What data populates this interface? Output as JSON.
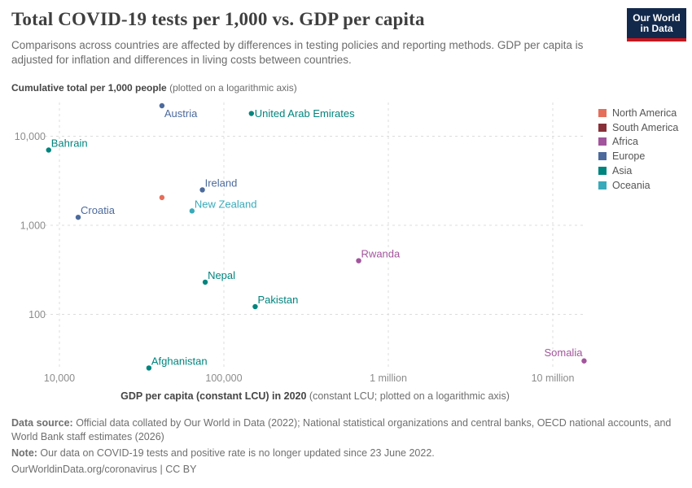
{
  "header": {
    "title": "Total COVID-19 tests per 1,000 vs. GDP per capita",
    "subtitle": "Comparisons across countries are affected by differences in testing policies and reporting methods. GDP per capita is adjusted for inflation and differences in living costs between countries.",
    "logo": {
      "line1": "Our World",
      "line2": "in Data",
      "bg_color": "#12294b",
      "stripe_color": "#c7161d"
    }
  },
  "chart_data": {
    "type": "scatter",
    "title": "Total COVID-19 tests per 1,000 vs. GDP per capita",
    "x_axis": {
      "title_bold": "GDP per capita (constant LCU) in 2020",
      "title_note": " (constant LCU; plotted on a logarithmic axis)",
      "scale": "log",
      "range": [
        8000,
        16000000
      ],
      "ticks": [
        {
          "value": 10000,
          "label": "10,000"
        },
        {
          "value": 100000,
          "label": "100,000"
        },
        {
          "value": 1000000,
          "label": "1 million"
        },
        {
          "value": 10000000,
          "label": "10 million"
        }
      ]
    },
    "y_axis": {
      "title_bold": "Cumulative total per 1,000 people",
      "title_note": " (plotted on a logarithmic axis)",
      "scale": "log",
      "range": [
        24,
        25000
      ],
      "ticks": [
        {
          "value": 100,
          "label": "100"
        },
        {
          "value": 1000,
          "label": "1,000"
        },
        {
          "value": 10000,
          "label": "10,000"
        }
      ]
    },
    "grid": "dashed",
    "legend_position": "right",
    "continent_colors": {
      "North America": "#E56E5A",
      "South America": "#883039",
      "Africa": "#A2559C",
      "Europe": "#4C6A9C",
      "Asia": "#00847E",
      "Oceania": "#38AABA"
    },
    "legend": [
      "North America",
      "South America",
      "Africa",
      "Europe",
      "Asia",
      "Oceania"
    ],
    "points": [
      {
        "name": "Austria",
        "continent": "Europe",
        "gdp_per_capita": 42000,
        "tests_per_1000": 22000,
        "label_anchor": "below-right"
      },
      {
        "name": "United Arab Emirates",
        "continent": "Asia",
        "gdp_per_capita": 147000,
        "tests_per_1000": 18000,
        "label_anchor": "right"
      },
      {
        "name": "Bahrain",
        "continent": "Asia",
        "gdp_per_capita": 8600,
        "tests_per_1000": 7000,
        "label_anchor": "above-right"
      },
      {
        "name": "Ireland",
        "continent": "Europe",
        "gdp_per_capita": 74000,
        "tests_per_1000": 2500,
        "label_anchor": "above-right"
      },
      {
        "name": "",
        "continent": "North America",
        "gdp_per_capita": 42000,
        "tests_per_1000": 2050,
        "label_anchor": "none"
      },
      {
        "name": "New Zealand",
        "continent": "Oceania",
        "gdp_per_capita": 64000,
        "tests_per_1000": 1450,
        "label_anchor": "above-right"
      },
      {
        "name": "Croatia",
        "continent": "Europe",
        "gdp_per_capita": 13000,
        "tests_per_1000": 1230,
        "label_anchor": "above-right"
      },
      {
        "name": "Rwanda",
        "continent": "Africa",
        "gdp_per_capita": 660000,
        "tests_per_1000": 400,
        "label_anchor": "above-right"
      },
      {
        "name": "Nepal",
        "continent": "Asia",
        "gdp_per_capita": 77000,
        "tests_per_1000": 230,
        "label_anchor": "above-right"
      },
      {
        "name": "Pakistan",
        "continent": "Asia",
        "gdp_per_capita": 155000,
        "tests_per_1000": 122,
        "label_anchor": "above-right"
      },
      {
        "name": "Afghanistan",
        "continent": "Asia",
        "gdp_per_capita": 35000,
        "tests_per_1000": 25,
        "label_anchor": "above-right"
      },
      {
        "name": "Somalia",
        "continent": "Africa",
        "gdp_per_capita": 15500000,
        "tests_per_1000": 30,
        "label_anchor": "above-left"
      }
    ]
  },
  "footer": {
    "data_source_label": "Data source:",
    "data_source_text": " Official data collated by Our World in Data (2022); National statistical organizations and central banks, OECD national accounts, and World Bank staff estimates (2026)",
    "note_label": "Note:",
    "note_text": " Our data on COVID-19 tests and positive rate is no longer updated since 23 June 2022.",
    "link": "OurWorldinData.org/coronavirus",
    "separator": " | ",
    "license": "CC BY"
  }
}
